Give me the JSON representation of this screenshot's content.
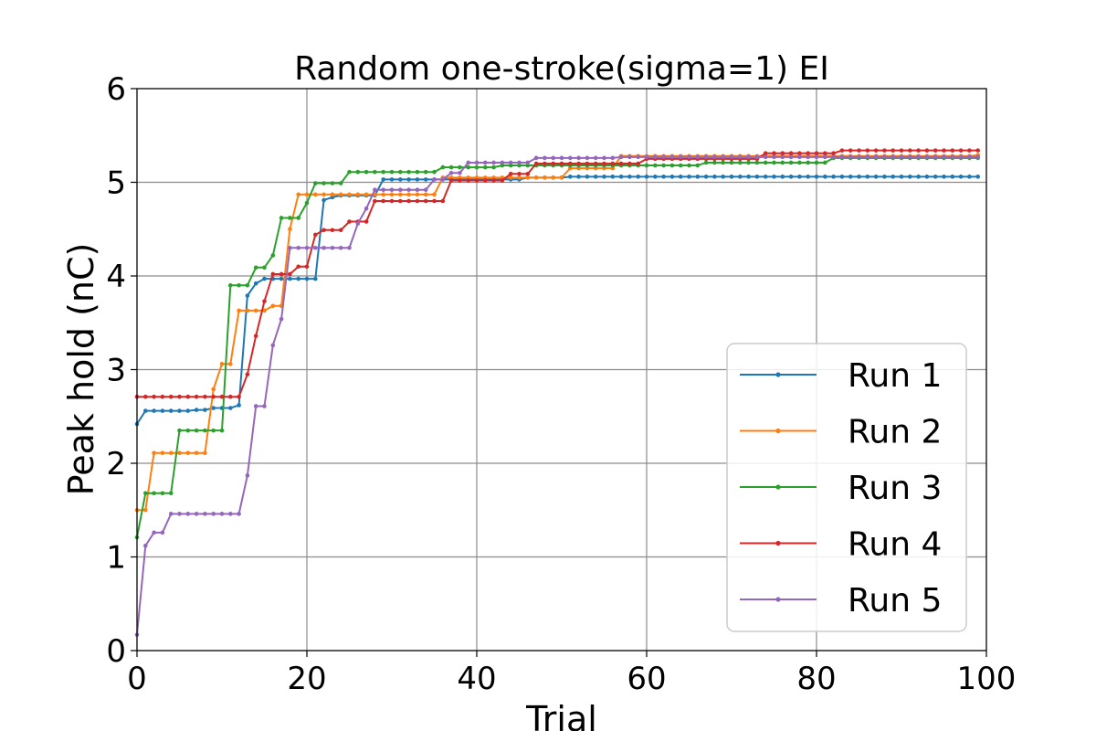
{
  "chart_data": {
    "type": "line",
    "title": "Random one-stroke(sigma=1) EI",
    "xlabel": "Trial",
    "ylabel": "Peak hold (nC)",
    "xlim": [
      0,
      100
    ],
    "ylim": [
      0,
      6
    ],
    "xticks": [
      0,
      20,
      40,
      60,
      80,
      100
    ],
    "yticks": [
      0,
      1,
      2,
      3,
      4,
      5,
      6
    ],
    "grid": true,
    "legend_position": "lower-right",
    "series": [
      {
        "name": "Run 1",
        "color": "#1f77b4",
        "steps": [
          [
            0,
            2.42
          ],
          [
            1,
            2.56
          ],
          [
            7,
            2.57
          ],
          [
            9,
            2.59
          ],
          [
            12,
            2.62
          ],
          [
            13,
            3.79
          ],
          [
            14,
            3.92
          ],
          [
            15,
            3.97
          ],
          [
            22,
            4.81
          ],
          [
            23,
            4.84
          ],
          [
            24,
            4.86
          ],
          [
            29,
            5.03
          ],
          [
            46,
            5.05
          ],
          [
            51,
            5.06
          ]
        ]
      },
      {
        "name": "Run 2",
        "color": "#ff7f0e",
        "steps": [
          [
            0,
            1.5
          ],
          [
            2,
            2.11
          ],
          [
            9,
            2.79
          ],
          [
            10,
            3.06
          ],
          [
            12,
            3.63
          ],
          [
            16,
            3.68
          ],
          [
            18,
            4.5
          ],
          [
            19,
            4.87
          ],
          [
            36,
            5.05
          ],
          [
            51,
            5.15
          ],
          [
            57,
            5.28
          ],
          [
            99,
            5.29
          ]
        ]
      },
      {
        "name": "Run 3",
        "color": "#2ca02c",
        "steps": [
          [
            0,
            1.21
          ],
          [
            1,
            1.68
          ],
          [
            5,
            2.35
          ],
          [
            11,
            3.9
          ],
          [
            14,
            4.09
          ],
          [
            16,
            4.22
          ],
          [
            17,
            4.62
          ],
          [
            20,
            4.78
          ],
          [
            21,
            4.99
          ],
          [
            25,
            5.11
          ],
          [
            36,
            5.16
          ],
          [
            43,
            5.18
          ],
          [
            67,
            5.21
          ],
          [
            82,
            5.26
          ]
        ]
      },
      {
        "name": "Run 4",
        "color": "#d62728",
        "steps": [
          [
            0,
            2.71
          ],
          [
            13,
            2.95
          ],
          [
            14,
            3.36
          ],
          [
            15,
            3.73
          ],
          [
            16,
            4.02
          ],
          [
            19,
            4.1
          ],
          [
            21,
            4.44
          ],
          [
            22,
            4.49
          ],
          [
            25,
            4.58
          ],
          [
            28,
            4.8
          ],
          [
            37,
            5.02
          ],
          [
            44,
            5.09
          ],
          [
            47,
            5.2
          ],
          [
            60,
            5.25
          ],
          [
            74,
            5.31
          ],
          [
            83,
            5.34
          ]
        ]
      },
      {
        "name": "Run 5",
        "color": "#9467bd",
        "steps": [
          [
            0,
            0.17
          ],
          [
            1,
            1.12
          ],
          [
            2,
            1.26
          ],
          [
            4,
            1.46
          ],
          [
            13,
            1.87
          ],
          [
            14,
            2.61
          ],
          [
            16,
            3.26
          ],
          [
            17,
            3.54
          ],
          [
            18,
            4.3
          ],
          [
            26,
            4.56
          ],
          [
            27,
            4.72
          ],
          [
            28,
            4.92
          ],
          [
            35,
            5.03
          ],
          [
            37,
            5.1
          ],
          [
            39,
            5.21
          ],
          [
            47,
            5.26
          ],
          [
            57,
            5.27
          ],
          [
            99,
            5.27
          ]
        ]
      }
    ]
  }
}
